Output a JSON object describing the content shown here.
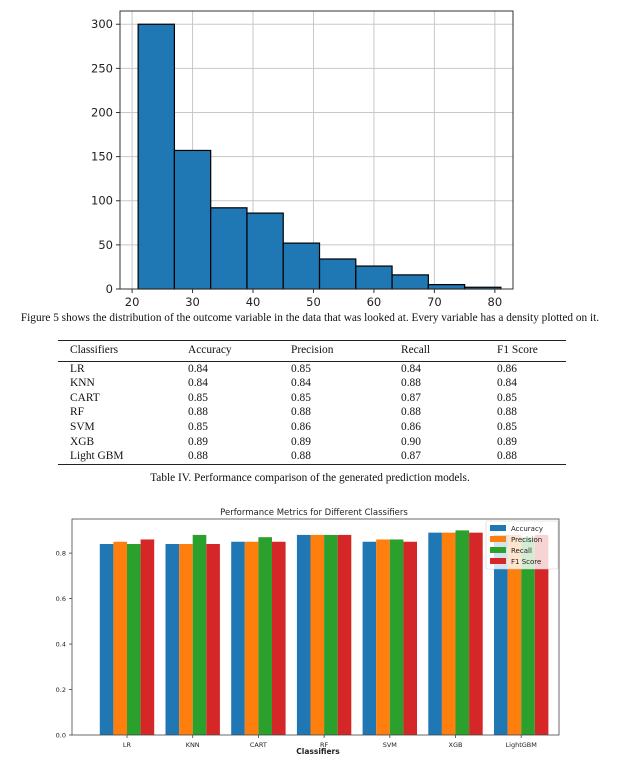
{
  "figure5": {
    "caption": "Figure 5 shows the distribution of the outcome variable in the data that was looked at. Every variable has a density plotted on it."
  },
  "table4": {
    "caption": "Table IV. Performance comparison of the generated prediction models.",
    "headers": [
      "Classifiers",
      "Accuracy",
      "Precision",
      "Recall",
      "F1 Score"
    ],
    "rows": [
      [
        "LR",
        "0.84",
        "0.85",
        "0.84",
        "0.86"
      ],
      [
        "KNN",
        "0.84",
        "0.84",
        "0.88",
        "0.84"
      ],
      [
        "CART",
        "0.85",
        "0.85",
        "0.87",
        "0.85"
      ],
      [
        "RF",
        "0.88",
        "0.88",
        "0.88",
        "0.88"
      ],
      [
        "SVM",
        "0.85",
        "0.86",
        "0.86",
        "0.85"
      ],
      [
        "XGB",
        "0.89",
        "0.89",
        "0.90",
        "0.89"
      ],
      [
        "Light GBM",
        "0.88",
        "0.88",
        "0.87",
        "0.88"
      ]
    ]
  },
  "chart_data": [
    {
      "type": "bar",
      "subtype": "histogram",
      "bins": [
        {
          "start": 21,
          "end": 27,
          "count": 300
        },
        {
          "start": 27,
          "end": 33,
          "count": 157
        },
        {
          "start": 33,
          "end": 39,
          "count": 92
        },
        {
          "start": 39,
          "end": 45,
          "count": 86
        },
        {
          "start": 45,
          "end": 51,
          "count": 52
        },
        {
          "start": 51,
          "end": 57,
          "count": 34
        },
        {
          "start": 57,
          "end": 63,
          "count": 26
        },
        {
          "start": 63,
          "end": 69,
          "count": 16
        },
        {
          "start": 69,
          "end": 75,
          "count": 5
        },
        {
          "start": 75,
          "end": 81,
          "count": 2
        }
      ],
      "title": "",
      "xlabel": "",
      "ylabel": "",
      "xlim": [
        18,
        83
      ],
      "ylim": [
        0,
        315
      ],
      "xticks": [
        20,
        30,
        40,
        50,
        60,
        70,
        80
      ],
      "yticks": [
        0,
        50,
        100,
        150,
        200,
        250,
        300
      ],
      "grid": true,
      "bar_color": "#1f77b4",
      "edge_color": "#000000"
    },
    {
      "type": "bar",
      "title": "Performance Metrics for Different Classifiers",
      "xlabel": "Classifiers",
      "ylabel": "",
      "categories": [
        "LR",
        "KNN",
        "CART",
        "RF",
        "SVM",
        "XGB",
        "LightGBM"
      ],
      "series": [
        {
          "name": "Accuracy",
          "color": "#1f77b4",
          "values": [
            0.84,
            0.84,
            0.85,
            0.88,
            0.85,
            0.89,
            0.88
          ]
        },
        {
          "name": "Precision",
          "color": "#ff7f0e",
          "values": [
            0.85,
            0.84,
            0.85,
            0.88,
            0.86,
            0.89,
            0.88
          ]
        },
        {
          "name": "Recall",
          "color": "#2ca02c",
          "values": [
            0.84,
            0.88,
            0.87,
            0.88,
            0.86,
            0.9,
            0.87
          ]
        },
        {
          "name": "F1 Score",
          "color": "#d62728",
          "values": [
            0.86,
            0.84,
            0.85,
            0.88,
            0.85,
            0.89,
            0.88
          ]
        }
      ],
      "ylim": [
        0,
        0.95
      ],
      "yticks": [
        "0.0",
        "0.2",
        "0.4",
        "0.6",
        "0.8"
      ],
      "legend": "top-right",
      "grid": false
    }
  ]
}
